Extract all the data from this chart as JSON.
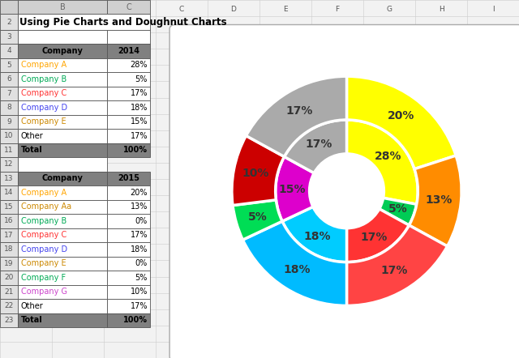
{
  "title": "Using Pie Charts and Doughnut Charts",
  "inner_values": [
    28,
    5,
    17,
    18,
    15,
    17
  ],
  "inner_colors": [
    "#FFFF00",
    "#00CC55",
    "#FF3333",
    "#00CCFF",
    "#DD00CC",
    "#AAAAAA"
  ],
  "inner_labels": [
    "28%",
    "5%",
    "17%",
    "18%",
    "15%",
    "17%"
  ],
  "outer_values": [
    20,
    13,
    17,
    18,
    5,
    10,
    17
  ],
  "outer_colors": [
    "#FFFF00",
    "#FF8C00",
    "#FF4444",
    "#00BBFF",
    "#00DD55",
    "#CC0000",
    "#AAAAAA"
  ],
  "outer_labels": [
    "20%",
    "13%",
    "17%",
    "18%",
    "5%",
    "10%",
    "17%"
  ],
  "label_color": "#333333",
  "start_angle": 90,
  "table1_header": [
    "Company",
    "2014"
  ],
  "table1_rows": [
    [
      "Company A",
      "28%",
      "#FFA500"
    ],
    [
      "Company B",
      "5%",
      "#00AA55"
    ],
    [
      "Company C",
      "17%",
      "#FF3333"
    ],
    [
      "Company D",
      "18%",
      "#4444EE"
    ],
    [
      "Company E",
      "15%",
      "#CC8800"
    ],
    [
      "Other",
      "17%",
      "#000000"
    ],
    [
      "Total",
      "100%",
      "#000000"
    ]
  ],
  "table2_header": [
    "Company",
    "2015"
  ],
  "table2_rows": [
    [
      "Company A",
      "20%",
      "#FFA500"
    ],
    [
      "Company Aa",
      "13%",
      "#CC8800"
    ],
    [
      "Company B",
      "0%",
      "#00AA55"
    ],
    [
      "Company C",
      "17%",
      "#FF3333"
    ],
    [
      "Company D",
      "18%",
      "#4444EE"
    ],
    [
      "Company E",
      "0%",
      "#CC8800"
    ],
    [
      "Company F",
      "5%",
      "#00AA55"
    ],
    [
      "Company G",
      "10%",
      "#CC44CC"
    ],
    [
      "Other",
      "17%",
      "#000000"
    ],
    [
      "Total",
      "100%",
      "#000000"
    ]
  ],
  "excel_bg": "#F2F2F2",
  "header_bg": "#808080",
  "header_fg": "#000000",
  "cell_border": "#555555",
  "row_num_fg": "#555555",
  "chart_border": "#AAAAAA",
  "bg_color": "#FFFFFF"
}
